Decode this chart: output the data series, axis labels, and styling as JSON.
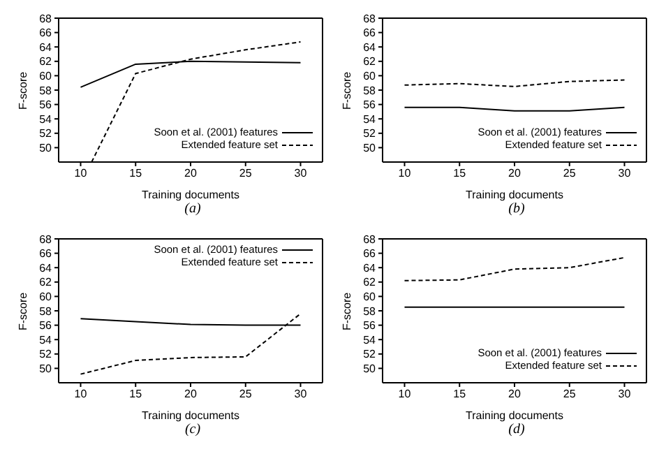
{
  "chart_data": [
    {
      "type": "line",
      "xlabel": "Training documents",
      "ylabel": "F-score",
      "annotations": [
        "(a)"
      ],
      "xlim": [
        8,
        32
      ],
      "xticks": [
        10,
        15,
        20,
        25,
        30
      ],
      "ylim": [
        48,
        68
      ],
      "yticks": [
        50,
        52,
        54,
        56,
        58,
        60,
        62,
        64,
        66,
        68
      ],
      "grid": false,
      "legend": "bottom right",
      "marker": "none",
      "x": [
        10,
        15,
        20,
        25,
        30
      ],
      "series": [
        {
          "name": "Soon et al. (2001) features",
          "color": "#000000",
          "line_style": "solid",
          "values": [
            58.4,
            61.6,
            62.0,
            61.9,
            61.8
          ]
        },
        {
          "name": "Extended feature set",
          "color": "#000000",
          "line_style": "dashed",
          "x": [
            11,
            15,
            20,
            25,
            30
          ],
          "values": [
            48,
            60.3,
            62.3,
            63.6,
            64.7
          ]
        }
      ]
    },
    {
      "type": "line",
      "xlabel": "Training documents",
      "ylabel": "F-score",
      "annotations": [
        "(b)"
      ],
      "xlim": [
        8,
        32
      ],
      "xticks": [
        10,
        15,
        20,
        25,
        30
      ],
      "ylim": [
        48,
        68
      ],
      "yticks": [
        50,
        52,
        54,
        56,
        58,
        60,
        62,
        64,
        66,
        68
      ],
      "grid": false,
      "legend": "bottom right",
      "marker": "none",
      "x": [
        10,
        15,
        20,
        25,
        30
      ],
      "series": [
        {
          "name": "Soon et al. (2001) features",
          "color": "#000000",
          "line_style": "solid",
          "values": [
            55.6,
            55.6,
            55.1,
            55.1,
            55.6
          ]
        },
        {
          "name": "Extended feature set",
          "color": "#000000",
          "line_style": "dashed",
          "values": [
            58.7,
            58.9,
            58.5,
            59.2,
            59.4
          ]
        }
      ]
    },
    {
      "type": "line",
      "xlabel": "Training documents",
      "ylabel": "F-score",
      "annotations": [
        "(c)"
      ],
      "xlim": [
        8,
        32
      ],
      "xticks": [
        10,
        15,
        20,
        25,
        30
      ],
      "ylim": [
        48,
        68
      ],
      "yticks": [
        50,
        52,
        54,
        56,
        58,
        60,
        62,
        64,
        66,
        68
      ],
      "grid": false,
      "legend": "top right",
      "marker": "none",
      "x": [
        10,
        15,
        20,
        25,
        30
      ],
      "series": [
        {
          "name": "Soon et al. (2001) features",
          "color": "#000000",
          "line_style": "solid",
          "values": [
            56.9,
            56.5,
            56.1,
            56.0,
            56.0
          ]
        },
        {
          "name": "Extended feature set",
          "color": "#000000",
          "line_style": "dashed",
          "values": [
            49.2,
            51.1,
            51.5,
            51.6,
            57.6
          ]
        }
      ]
    },
    {
      "type": "line",
      "xlabel": "Training documents",
      "ylabel": "F-score",
      "annotations": [
        "(d)"
      ],
      "xlim": [
        8,
        32
      ],
      "xticks": [
        10,
        15,
        20,
        25,
        30
      ],
      "ylim": [
        48,
        68
      ],
      "yticks": [
        50,
        52,
        54,
        56,
        58,
        60,
        62,
        64,
        66,
        68
      ],
      "grid": false,
      "legend": "bottom right",
      "marker": "none",
      "x": [
        10,
        15,
        20,
        25,
        30
      ],
      "series": [
        {
          "name": "Soon et al. (2001) features",
          "color": "#000000",
          "line_style": "solid",
          "values": [
            58.5,
            58.5,
            58.5,
            58.5,
            58.5
          ]
        },
        {
          "name": "Extended feature set",
          "color": "#000000",
          "line_style": "dashed",
          "values": [
            62.2,
            62.3,
            63.8,
            64.0,
            65.4
          ]
        }
      ]
    }
  ]
}
